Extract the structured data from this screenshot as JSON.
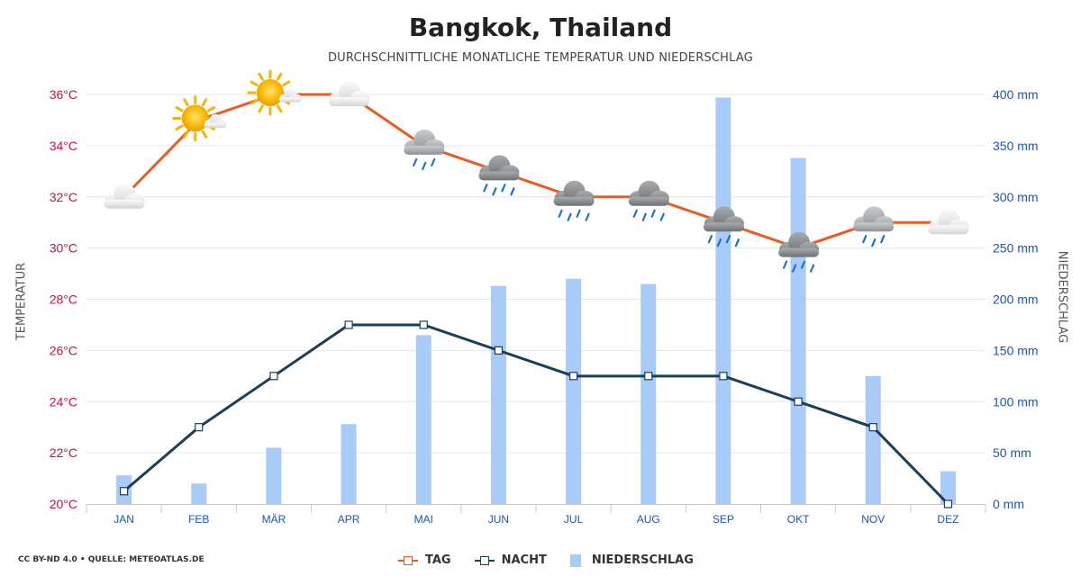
{
  "title": "Bangkok, Thailand",
  "subtitle": "DURCHSCHNITTLICHE MONATLICHE TEMPERATUR UND NIEDERSCHLAG",
  "credit": "CC BY-ND 4.0 • QUELLE: METEOATLAS.DE",
  "colors": {
    "day": "#ea5b24",
    "night": "#1c3f55",
    "precip": "#a9cbf7",
    "left_axis": "#d0103a",
    "right_axis": "#1a56b8"
  },
  "chart_data": {
    "type": "line",
    "title": "Bangkok, Thailand",
    "subtitle": "DURCHSCHNITTLICHE MONATLICHE TEMPERATUR UND NIEDERSCHLAG",
    "ylabel": "TEMPERATUR",
    "y2label": "NIEDERSCHLAG",
    "categories": [
      "JAN",
      "FEB",
      "MÄR",
      "APR",
      "MAI",
      "JUN",
      "JUL",
      "AUG",
      "SEP",
      "OKT",
      "NOV",
      "DEZ"
    ],
    "ylim": [
      20,
      36
    ],
    "y2lim": [
      0,
      400
    ],
    "yticks": [
      "20°C",
      "22°C",
      "24°C",
      "26°C",
      "28°C",
      "30°C",
      "32°C",
      "34°C",
      "36°C"
    ],
    "y2ticks": [
      "0 mm",
      "50 mm",
      "100 mm",
      "150 mm",
      "200 mm",
      "250 mm",
      "300 mm",
      "350 mm",
      "400 mm"
    ],
    "grid": true,
    "legend_position": "bottom",
    "series": [
      {
        "name": "TAG",
        "type": "line",
        "axis": "left",
        "values": [
          32,
          35,
          36,
          36,
          34,
          33,
          32,
          32,
          31,
          30,
          31,
          31
        ]
      },
      {
        "name": "NACHT",
        "type": "line",
        "axis": "left",
        "values": [
          20.5,
          23,
          25,
          27,
          27,
          26,
          25,
          25,
          25,
          24,
          23,
          20
        ]
      },
      {
        "name": "NIEDERSCHLAG",
        "type": "bar",
        "axis": "right",
        "values": [
          28,
          20,
          55,
          78,
          165,
          213,
          220,
          215,
          397,
          338,
          125,
          32
        ]
      }
    ],
    "weather_icons": [
      "cloudy",
      "partly-sunny",
      "partly-sunny",
      "cloudy",
      "rain-light",
      "rain",
      "rain",
      "rain",
      "rain",
      "rain",
      "rain-light",
      "cloudy"
    ]
  }
}
